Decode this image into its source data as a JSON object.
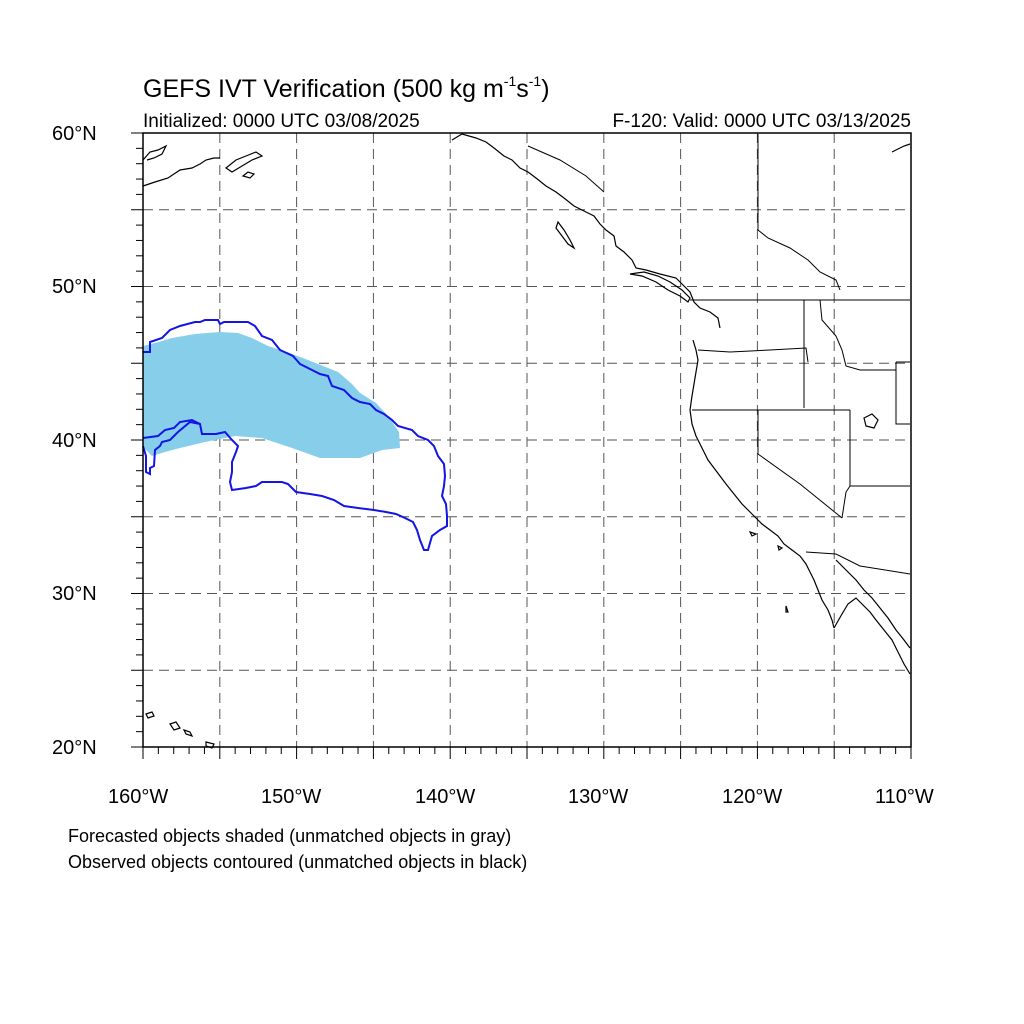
{
  "title": {
    "prefix": "GEFS IVT Verification (500 kg m",
    "exp1": "-1",
    "mid": "s",
    "exp2": "-1",
    "suffix": ")"
  },
  "initialized": "Initialized: 0000 UTC 03/08/2025",
  "valid": "F-120: Valid: 0000 UTC 03/13/2025",
  "lat_labels": [
    "60°N",
    "50°N",
    "40°N",
    "30°N",
    "20°N"
  ],
  "lon_labels": [
    "160°W",
    "150°W",
    "140°W",
    "130°W",
    "120°W",
    "110°W"
  ],
  "notes": [
    "Forecasted objects shaded (unmatched objects in gray)",
    "Observed objects contoured (unmatched objects in black)"
  ],
  "map": {
    "projection": "cylindrical-equidistant",
    "lon_range": [
      -160,
      -110
    ],
    "lat_range": [
      20,
      60
    ],
    "grid_lines": "dashed",
    "grid_interval_deg": 5,
    "colors": {
      "forecast_matched_fill": "#87ceeb",
      "observed_matched_contour": "#1414e6",
      "grid": "#555555",
      "coastline": "#000000"
    }
  }
}
